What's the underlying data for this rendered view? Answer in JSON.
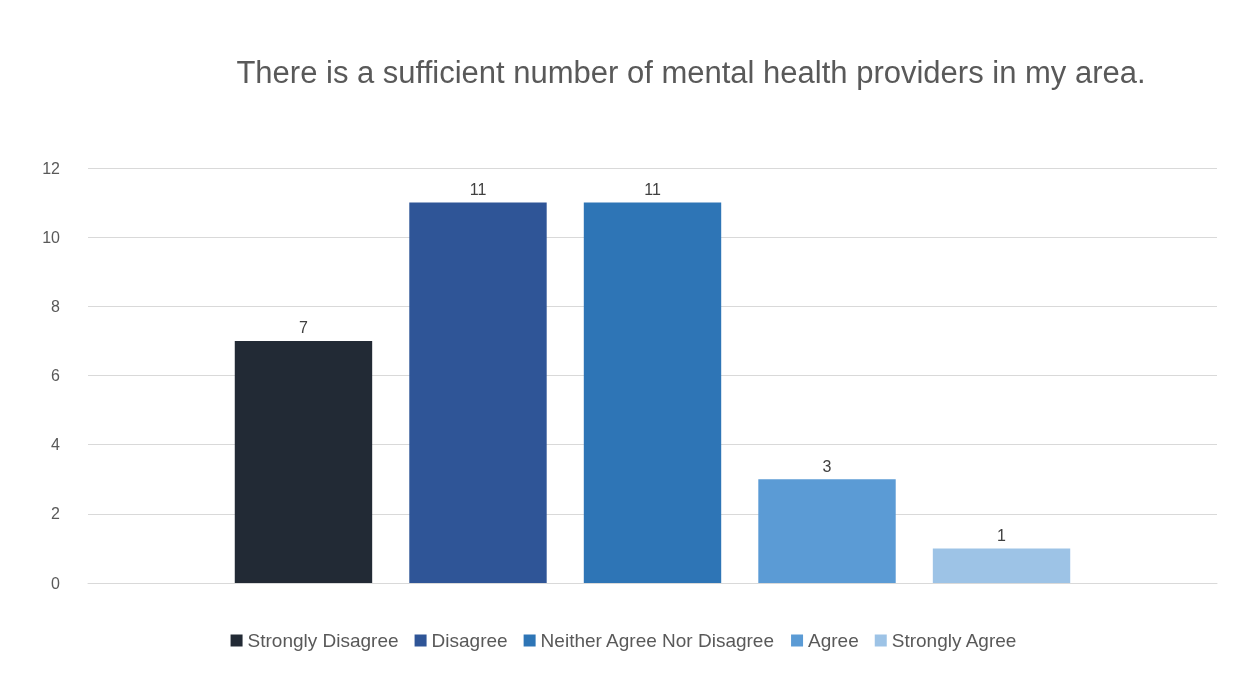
{
  "chart_data": {
    "type": "bar",
    "title": "There is a sufficient number of mental health providers in my area.",
    "categories": [
      null
    ],
    "series": [
      {
        "name": "Strongly Disagree",
        "color": "#222a35",
        "values": [
          7
        ]
      },
      {
        "name": "Disagree",
        "color": "#2f5597",
        "values": [
          11
        ]
      },
      {
        "name": "Neither Agree Nor Disagree",
        "color": "#2e75b6",
        "values": [
          11
        ]
      },
      {
        "name": "Agree",
        "color": "#5b9bd5",
        "values": [
          3
        ]
      },
      {
        "name": "Strongly Agree",
        "color": "#9dc3e6",
        "values": [
          1
        ]
      }
    ],
    "ylim": [
      0,
      12
    ],
    "yticks": [
      0,
      2,
      4,
      6,
      8,
      10,
      12
    ],
    "grid": "y",
    "legend": "bottom",
    "data_labels": true
  }
}
